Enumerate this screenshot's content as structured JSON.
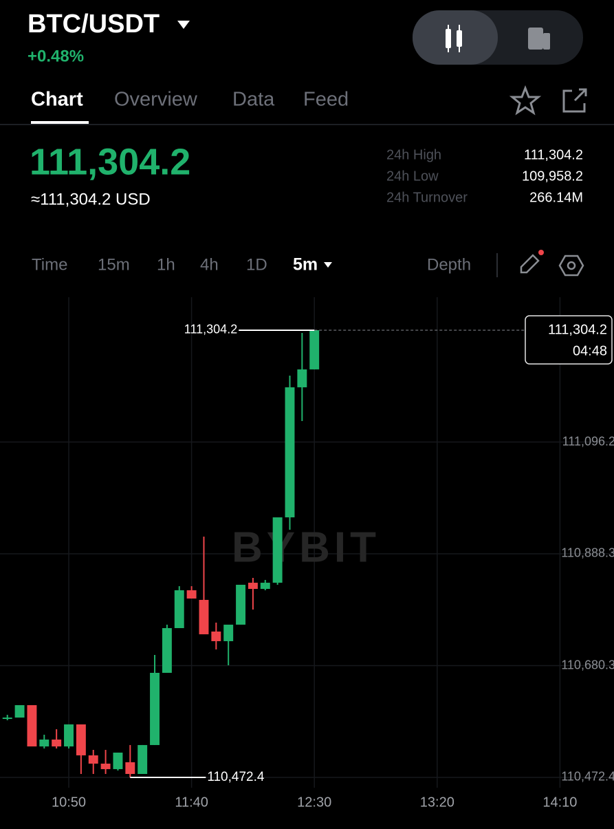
{
  "header": {
    "pair": "BTC/USDT",
    "change": "+0.48%"
  },
  "tabs": [
    "Chart",
    "Overview",
    "Data",
    "Feed"
  ],
  "price": {
    "last": "111,304.2",
    "usd": "≈111,304.2 USD"
  },
  "stats": [
    {
      "label": "24h High",
      "value": "111,304.2"
    },
    {
      "label": "24h Low",
      "value": "109,958.2"
    },
    {
      "label": "24h Turnover",
      "value": "266.14M"
    }
  ],
  "timeframes": [
    "Time",
    "15m",
    "1h",
    "4h",
    "1D",
    "5m"
  ],
  "depth": "Depth",
  "chart_data": {
    "type": "candlestick",
    "watermark": "BYBIT",
    "x": [
      "10:25",
      "10:30",
      "10:35",
      "10:40",
      "10:45",
      "10:50",
      "10:55",
      "11:00",
      "11:05",
      "11:10",
      "11:15",
      "11:20",
      "11:25",
      "11:30",
      "11:35",
      "11:40",
      "11:45",
      "11:50",
      "11:55",
      "12:00",
      "12:05",
      "12:10",
      "12:15",
      "12:20",
      "12:25",
      "12:30"
    ],
    "open": [
      110581.2,
      110583.7,
      110606.8,
      110530.0,
      110542.8,
      110530.0,
      110571.0,
      110513.4,
      110498.0,
      110487.8,
      110500.6,
      110478.8,
      110532.6,
      110666.9,
      110750.1,
      110820.5,
      110802.6,
      110743.7,
      110725.8,
      110756.5,
      110834.5,
      110823.0,
      110834.5,
      110956.1,
      111198.0,
      111231.3
    ],
    "high": [
      110588.8,
      110606.8,
      110606.8,
      110551.8,
      110562.0,
      110571.0,
      110571.0,
      110523.6,
      110523.6,
      110518.5,
      110532.6,
      110532.6,
      110700.2,
      110756.5,
      110828.1,
      110828.1,
      110920.3,
      110760.3,
      110756.5,
      110830.7,
      110843.5,
      110839.7,
      110956.1,
      111219.7,
      111299.1,
      111304.2
    ],
    "low": [
      110578.7,
      110583.7,
      110530.0,
      110526.2,
      110526.2,
      110526.2,
      110478.8,
      110478.8,
      110478.8,
      110485.2,
      110472.4,
      110478.8,
      110532.6,
      110666.9,
      110750.1,
      110805.1,
      110738.6,
      110710.4,
      110681.0,
      110756.5,
      110784.6,
      110820.5,
      110830.7,
      110933.1,
      111135.3,
      111231.3
    ],
    "close": [
      110583.7,
      110606.8,
      110530.0,
      110542.8,
      110530.0,
      110571.0,
      110513.4,
      110498.0,
      110487.8,
      110518.5,
      110478.8,
      110532.6,
      110666.9,
      110750.1,
      110820.5,
      110805.1,
      110738.6,
      110725.8,
      110756.5,
      110830.7,
      110823.0,
      110834.5,
      110956.1,
      111198.0,
      111231.3,
      111304.2
    ],
    "up_color": "#20b26c",
    "down_color": "#ef454a",
    "xlim": [
      "10:22",
      "14:32"
    ],
    "xticks": [
      "10:50",
      "11:40",
      "12:30",
      "13:20",
      "14:10"
    ],
    "ylim": [
      110453.2,
      111365.6
    ],
    "yticks": [
      {
        "value": 110472.4,
        "label": "110,472.4"
      },
      {
        "value": 110680.3,
        "label": "110,680.3"
      },
      {
        "value": 110888.3,
        "label": "110,888.3"
      },
      {
        "value": 111096.2,
        "label": "111,096.2"
      }
    ],
    "max_label": {
      "value": 111304.2,
      "label": "111,304.2"
    },
    "min_label": {
      "value": 110472.4,
      "label": "110,472.4"
    },
    "price_line": {
      "value": 111304.2,
      "label": "111,304.2"
    },
    "countdown": "04:48",
    "grid": true
  }
}
